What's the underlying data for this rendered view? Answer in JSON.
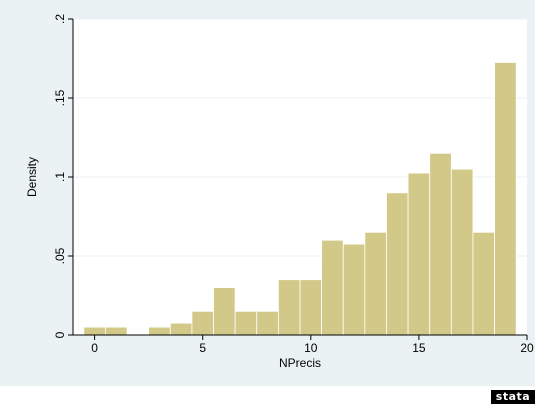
{
  "chart_data": {
    "type": "bar",
    "title": "",
    "xlabel": "NPrecis",
    "ylabel": "Density",
    "xlim": [
      -1,
      20
    ],
    "ylim": [
      0,
      0.2
    ],
    "xticks": [
      0,
      5,
      10,
      15,
      20
    ],
    "xtick_labels": [
      "0",
      "5",
      "10",
      "15",
      "20"
    ],
    "yticks": [
      0,
      0.05,
      0.1,
      0.15,
      0.2
    ],
    "ytick_labels": [
      "0",
      ".05",
      ".1",
      ".15",
      ".2"
    ],
    "bin_width": 1,
    "bin_starts": [
      -0.5,
      0.5,
      2.5,
      3.5,
      4.5,
      5.5,
      6.5,
      7.5,
      8.5,
      9.5,
      10.5,
      11.5,
      12.5,
      13.5,
      14.5,
      15.5,
      16.5,
      17.5,
      18.5
    ],
    "values": [
      0.005,
      0.005,
      0.005,
      0.0075,
      0.015,
      0.03,
      0.015,
      0.015,
      0.035,
      0.035,
      0.06,
      0.0575,
      0.065,
      0.09,
      0.1025,
      0.115,
      0.105,
      0.065,
      0.1725
    ],
    "grid": true,
    "legend": "none",
    "colors": {
      "bar_fill": "#d2c988",
      "bar_stroke": "#ffffff",
      "grid": "#eaf2f3",
      "outer_bg": "#eaf2f3",
      "plot_bg": "#ffffff"
    }
  },
  "logo_text": "stata"
}
